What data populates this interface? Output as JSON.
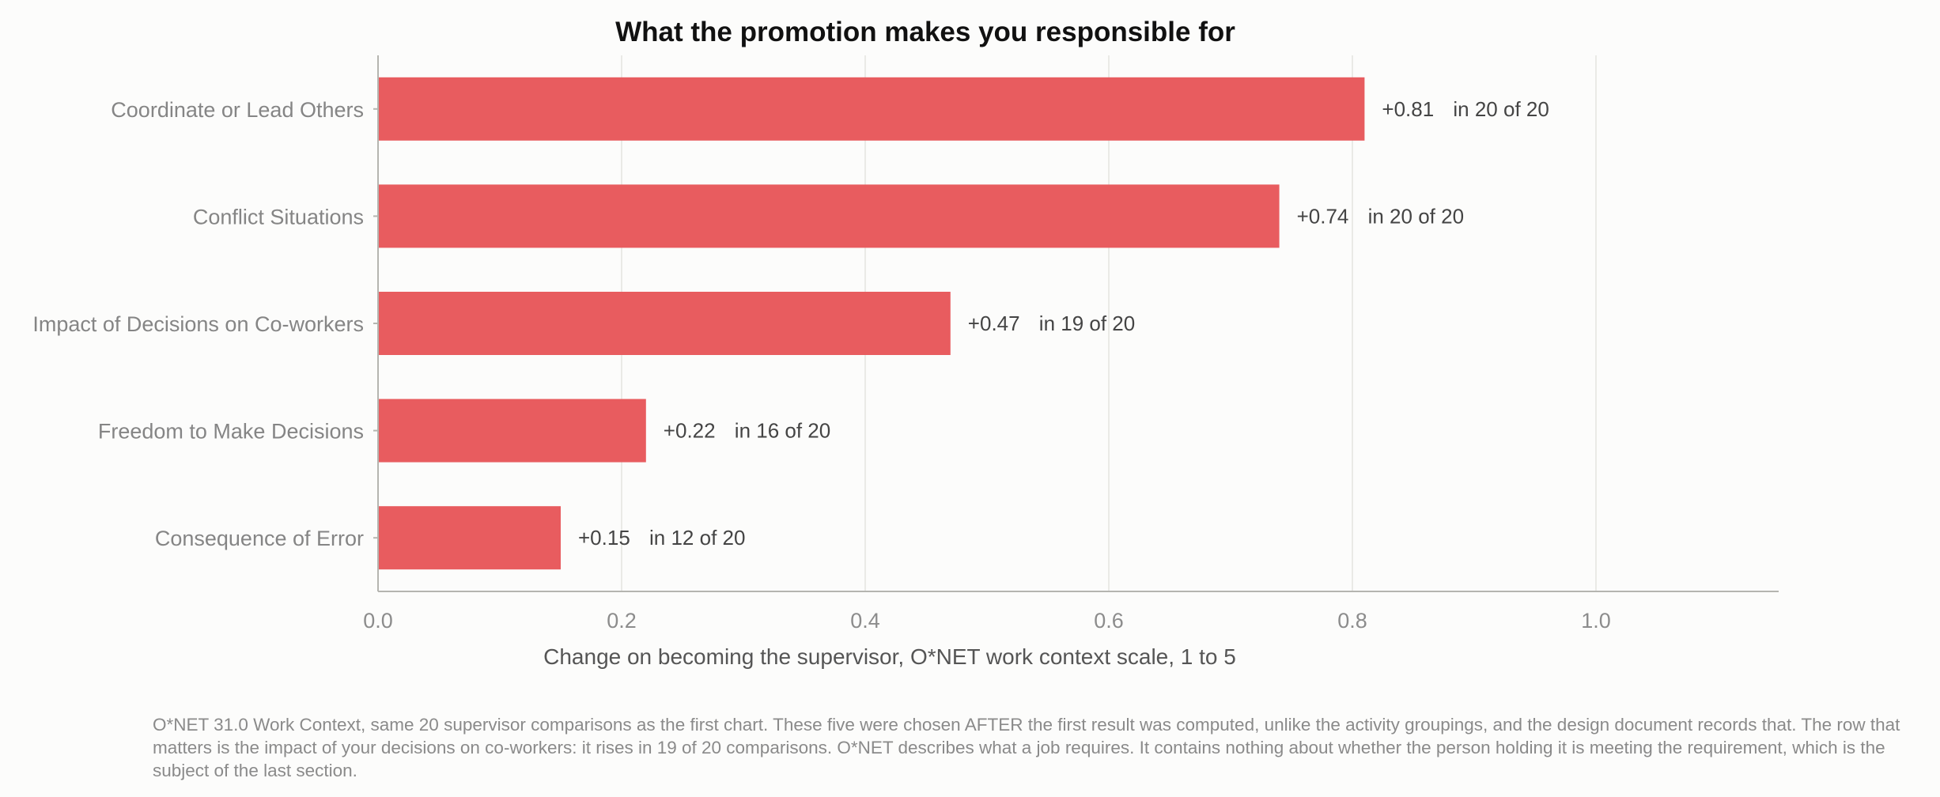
{
  "chart_data": {
    "type": "bar",
    "orientation": "horizontal",
    "title": "What the promotion makes you responsible for",
    "xlabel": "Change on becoming the supervisor, O*NET work context scale, 1 to 5",
    "ylabel": "",
    "categories": [
      "Coordinate or Lead Others",
      "Conflict Situations",
      "Impact of Decisions on Co-workers",
      "Freedom to Make Decisions",
      "Consequence of Error"
    ],
    "values": [
      0.81,
      0.74,
      0.47,
      0.22,
      0.15
    ],
    "value_labels": [
      "+0.81",
      "+0.74",
      "+0.47",
      "+0.22",
      "+0.15"
    ],
    "count_labels": [
      "in 20 of 20",
      "in 20 of 20",
      "in 19 of 20",
      "in 16 of 20",
      "in 12 of 20"
    ],
    "xlim": [
      0,
      1.15
    ],
    "xticks": [
      0.0,
      0.2,
      0.4,
      0.6,
      0.8,
      1.0
    ],
    "xtick_labels": [
      "0.0",
      "0.2",
      "0.4",
      "0.6",
      "0.8",
      "1.0"
    ],
    "grid": "vertical",
    "bar_color": "#e85c5f"
  },
  "note": "O*NET 31.0 Work Context, same 20 supervisor comparisons as the first chart. These five were chosen AFTER the first result was computed, unlike the activity groupings, and the design document records that. The row that matters is the impact of your decisions on co-workers: it rises in 19 of 20 comparisons. O*NET describes what a job requires. It contains nothing about whether the person holding it is meeting the requirement, which is the subject of the last section."
}
